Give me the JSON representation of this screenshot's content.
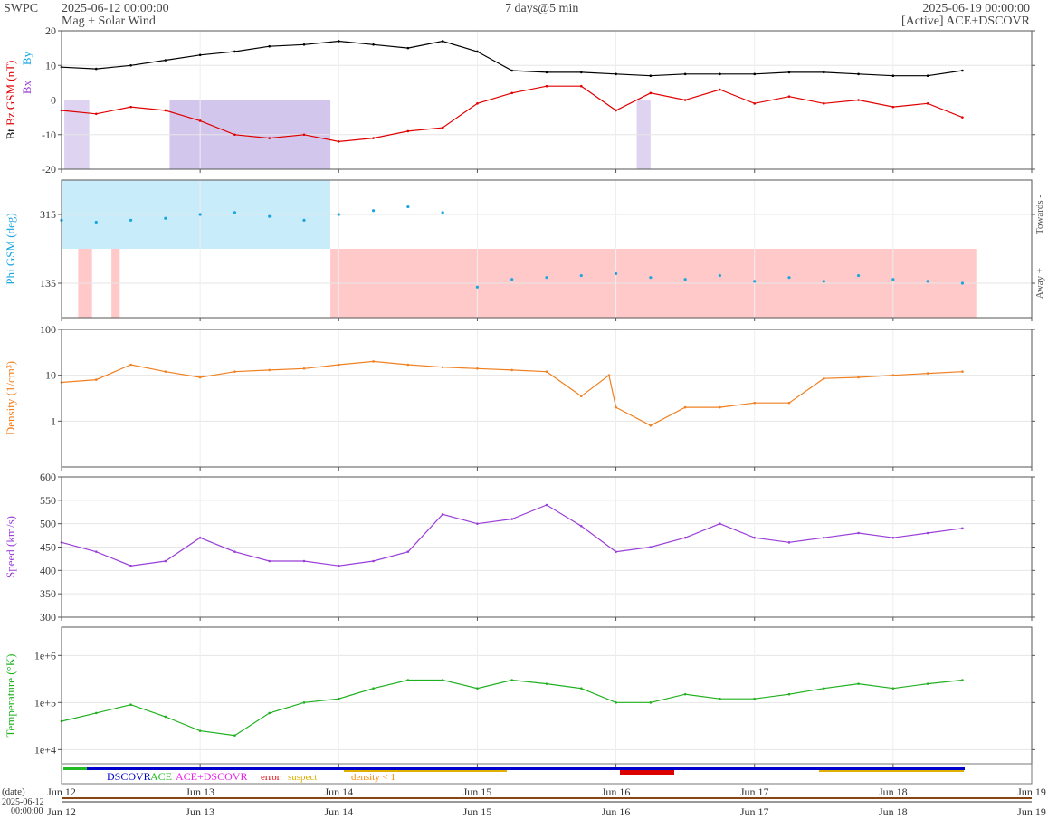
{
  "header": {
    "brand": "SWPC",
    "start": "2025-06-12 00:00:00",
    "subtitle": "Mag + Solar Wind",
    "span": "7 days@5 min",
    "end": "2025-06-19 00:00:00",
    "source": "[Active] ACE+DSCOVR"
  },
  "colors": {
    "bt": "#000000",
    "bz": "#e00000",
    "phi": "#1aa7e0",
    "density": "#f08020",
    "speed": "#9a3fd8",
    "temp": "#20b020",
    "bz_neg_fill": "#c8b8e8",
    "toward_fill": "#c9ecfb",
    "away_fill": "#ffc9c9",
    "dscovr": "#0000cc",
    "ace": "#22bb22",
    "acedscovr": "#ee22ee",
    "error": "#dd0000",
    "suspect": "#e0b000",
    "density_lt1": "#ff8800"
  },
  "legend": {
    "dscovr": "DSCOVR",
    "ace": "ACE",
    "acedscovr": "ACE+DSCOVR",
    "error": "error",
    "suspect": "suspect",
    "density_lt1": "density < 1"
  },
  "date_axis": {
    "label": "(date)",
    "start_date": "2025-06-12",
    "start_time": "00:00:00"
  },
  "chart_data": [
    {
      "type": "line",
      "ylabel_parts": [
        "Bt",
        "Bz GSM (nT)"
      ],
      "legend_marks": [
        "Bx",
        "By"
      ],
      "ylim": [
        -20,
        20
      ],
      "yticks": [
        -20,
        -10,
        0,
        10,
        20
      ],
      "tick_labels": [
        "-20",
        "-10",
        "0",
        "10",
        "20"
      ],
      "series": [
        {
          "name": "Bt",
          "x": [
            0,
            0.25,
            0.5,
            0.75,
            1,
            1.25,
            1.5,
            1.75,
            2,
            2.25,
            2.5,
            2.75,
            3,
            3.25,
            3.5,
            3.75,
            4,
            4.25,
            4.5,
            4.75,
            5,
            5.25,
            5.5,
            5.75,
            6,
            6.25,
            6.5
          ],
          "y": [
            9.5,
            9,
            10,
            11.5,
            13,
            14,
            15.5,
            16,
            17,
            16,
            15,
            17,
            14,
            8.5,
            8,
            8,
            7.5,
            7,
            7.5,
            7.5,
            7.5,
            8,
            8,
            7.5,
            7,
            7,
            8.5
          ]
        },
        {
          "name": "Bz GSM",
          "x": [
            0,
            0.25,
            0.5,
            0.75,
            1,
            1.25,
            1.5,
            1.75,
            2,
            2.25,
            2.5,
            2.75,
            3,
            3.25,
            3.5,
            3.75,
            4,
            4.25,
            4.5,
            4.75,
            5,
            5.25,
            5.5,
            5.75,
            6,
            6.25,
            6.5
          ],
          "y": [
            -3,
            -4,
            -2,
            -3,
            -6,
            -10,
            -11,
            -10,
            -12,
            -11,
            -9,
            -8,
            -1,
            2,
            4,
            4,
            -3,
            2,
            0,
            3,
            -1,
            1,
            -1,
            0,
            -2,
            -1,
            -5
          ]
        }
      ]
    },
    {
      "type": "scatter",
      "ylabel": "Phi GSM (deg)",
      "side_labels": [
        "Towards -",
        "Away +"
      ],
      "ylim": [
        45,
        405
      ],
      "yticks": [
        135,
        315
      ],
      "tick_labels": [
        "135",
        "315"
      ],
      "series": [
        {
          "name": "Phi GSM",
          "x": [
            0,
            0.25,
            0.5,
            0.75,
            1,
            1.25,
            1.5,
            1.75,
            2,
            2.25,
            2.5,
            2.75,
            3,
            3.25,
            3.5,
            3.75,
            4,
            4.25,
            4.5,
            4.75,
            5,
            5.25,
            5.5,
            5.75,
            6,
            6.25,
            6.5
          ],
          "y": [
            300,
            295,
            300,
            305,
            315,
            320,
            310,
            300,
            315,
            325,
            335,
            320,
            125,
            145,
            150,
            155,
            160,
            150,
            145,
            155,
            140,
            150,
            140,
            155,
            145,
            140,
            135
          ]
        }
      ]
    },
    {
      "type": "line",
      "ylabel": "Density (1/cm³)",
      "scale": "log",
      "ylim": [
        0.1,
        100
      ],
      "yticks": [
        1,
        10,
        100
      ],
      "tick_labels": [
        "1",
        "10",
        "100"
      ],
      "series": [
        {
          "name": "Density",
          "x": [
            0,
            0.25,
            0.5,
            0.75,
            1,
            1.25,
            1.5,
            1.75,
            2,
            2.25,
            2.5,
            2.75,
            3,
            3.25,
            3.5,
            3.75,
            3.95,
            4,
            4.25,
            4.5,
            4.75,
            5,
            5.25,
            5.5,
            5.75,
            6,
            6.25,
            6.5
          ],
          "y": [
            7,
            8,
            17,
            12,
            9,
            12,
            13,
            14,
            17,
            20,
            17,
            15,
            14,
            13,
            12,
            3.5,
            10,
            2,
            0.8,
            2,
            2,
            2.5,
            2.5,
            8.5,
            9,
            10,
            11,
            12
          ]
        }
      ]
    },
    {
      "type": "line",
      "ylabel": "Speed (km/s)",
      "ylim": [
        300,
        600
      ],
      "yticks": [
        300,
        350,
        400,
        450,
        500,
        550,
        600
      ],
      "tick_labels": [
        "300",
        "350",
        "400",
        "450",
        "500",
        "550",
        "600"
      ],
      "series": [
        {
          "name": "Speed",
          "x": [
            0,
            0.25,
            0.5,
            0.75,
            1,
            1.25,
            1.5,
            1.75,
            2,
            2.25,
            2.5,
            2.75,
            3,
            3.25,
            3.5,
            3.75,
            4,
            4.25,
            4.5,
            4.75,
            5,
            5.25,
            5.5,
            5.75,
            6,
            6.25,
            6.5
          ],
          "y": [
            460,
            440,
            410,
            420,
            470,
            440,
            420,
            420,
            410,
            420,
            440,
            520,
            500,
            510,
            540,
            495,
            440,
            450,
            470,
            500,
            470,
            460,
            470,
            480,
            470,
            480,
            490
          ]
        }
      ]
    },
    {
      "type": "line",
      "ylabel": "Temperature (°K)",
      "scale": "log",
      "ylim": [
        5000,
        4000000
      ],
      "yticks": [
        10000,
        100000,
        1000000
      ],
      "tick_labels": [
        "1e+4",
        "1e+5",
        "1e+6"
      ],
      "series": [
        {
          "name": "Temperature",
          "x": [
            0,
            0.25,
            0.5,
            0.75,
            1,
            1.25,
            1.5,
            1.75,
            2,
            2.25,
            2.5,
            2.75,
            3,
            3.25,
            3.5,
            3.75,
            4,
            4.25,
            4.5,
            4.75,
            5,
            5.25,
            5.5,
            5.75,
            6,
            6.25,
            6.5
          ],
          "y": [
            40000,
            60000,
            90000,
            50000,
            25000,
            20000,
            60000,
            100000,
            120000,
            200000,
            300000,
            300000,
            200000,
            300000,
            250000,
            200000,
            100000,
            100000,
            150000,
            120000,
            120000,
            150000,
            200000,
            250000,
            200000,
            250000,
            300000
          ]
        }
      ]
    }
  ],
  "x_axis": {
    "tick_labels": [
      "Jun 12",
      "Jun 13",
      "Jun 14",
      "Jun 15",
      "Jun 16",
      "Jun 17",
      "Jun 18",
      "Jun 19"
    ]
  }
}
